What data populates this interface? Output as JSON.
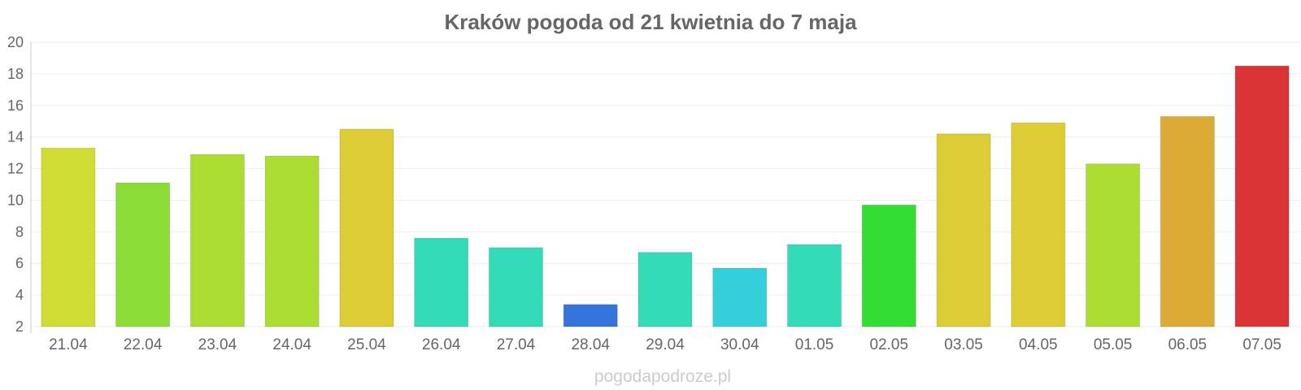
{
  "chart_data": {
    "type": "bar",
    "title": "Kraków pogoda od 21 kwietnia do 7 maja",
    "xlabel": "",
    "ylabel": "",
    "ylim": [
      2,
      20
    ],
    "yticks": [
      2,
      4,
      6,
      8,
      10,
      12,
      14,
      16,
      18,
      20
    ],
    "grid": true,
    "categories": [
      "21.04",
      "22.04",
      "23.04",
      "24.04",
      "25.04",
      "26.04",
      "27.04",
      "28.04",
      "29.04",
      "30.04",
      "01.05",
      "02.05",
      "03.05",
      "04.05",
      "05.05",
      "06.05",
      "07.05"
    ],
    "values": [
      13.3,
      11.1,
      12.9,
      12.8,
      14.5,
      7.6,
      7.0,
      3.4,
      6.7,
      5.7,
      7.2,
      9.7,
      14.2,
      14.9,
      12.3,
      15.3,
      18.5
    ],
    "colors": [
      "#d0dd33",
      "#8ade37",
      "#abdd33",
      "#abdd33",
      "#dbcd33",
      "#34dbb8",
      "#34dbb8",
      "#3474db",
      "#34dbb8",
      "#34d1db",
      "#34dbb8",
      "#34dd34",
      "#dbcd33",
      "#dbcd33",
      "#abdd33",
      "#dbab35",
      "#db3434"
    ]
  },
  "watermark": "pogodapodroze.pl"
}
